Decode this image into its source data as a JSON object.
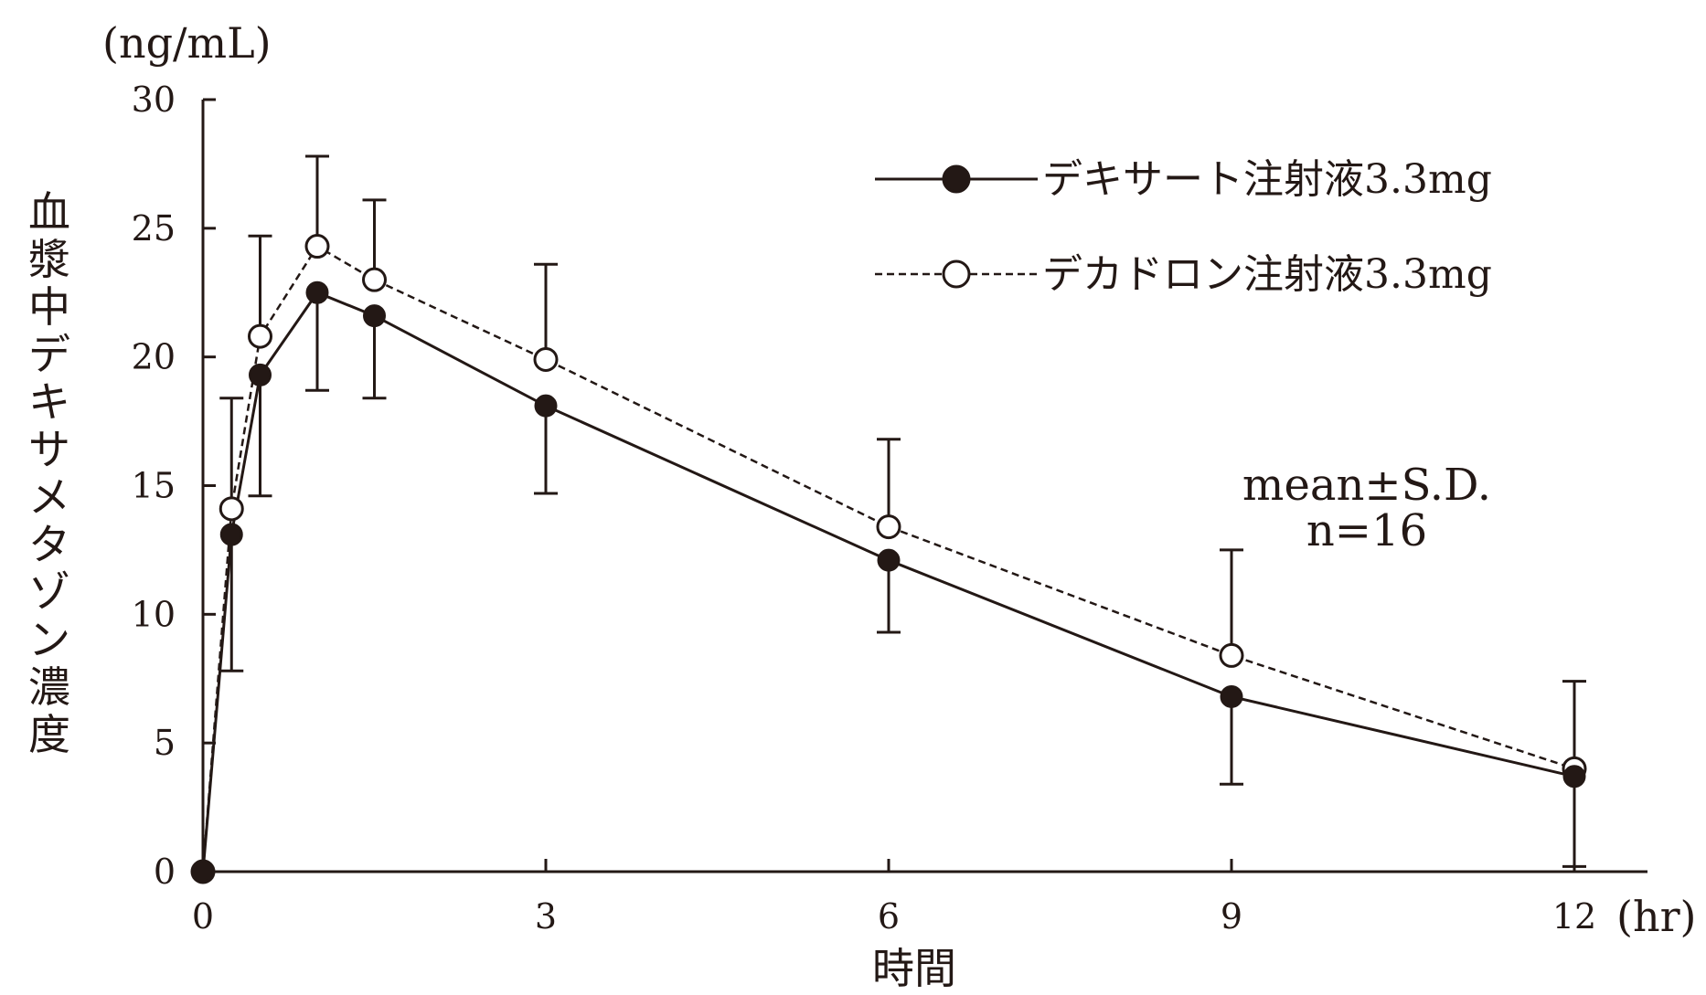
{
  "chart_data": {
    "type": "line",
    "ylabel": "血漿中デキサメタゾン濃度",
    "xlabel": "時間",
    "y_unit": "(ng/mL)",
    "x_unit": "(hr)",
    "ylim": [
      0,
      30
    ],
    "xlim": [
      0,
      12.4
    ],
    "y_ticks": [
      0,
      5,
      10,
      15,
      20,
      25,
      30
    ],
    "x_ticks": [
      0,
      3,
      6,
      9,
      12
    ],
    "grid": false,
    "legend_position": "top-right",
    "annotation": [
      "mean±S.D.",
      "n=16"
    ],
    "x": [
      0,
      0.25,
      0.5,
      1,
      1.5,
      3,
      6,
      9,
      12
    ],
    "series": [
      {
        "name": "デキサート注射液3.3mg",
        "line_style": "solid",
        "marker": "filled-circle",
        "values": [
          0,
          13.1,
          19.3,
          22.5,
          21.6,
          18.1,
          12.1,
          6.8,
          3.7
        ],
        "sd": [
          0,
          5.3,
          4.7,
          3.8,
          3.2,
          3.4,
          2.8,
          3.4,
          3.5
        ]
      },
      {
        "name": "デカドロン注射液3.3mg",
        "line_style": "dashed",
        "marker": "open-circle",
        "values": [
          0,
          14.1,
          20.8,
          24.3,
          23.0,
          19.9,
          13.4,
          8.4,
          4.0
        ],
        "sd": [
          0,
          4.3,
          3.9,
          3.5,
          3.1,
          3.7,
          3.4,
          4.1,
          3.4
        ]
      }
    ],
    "colors": {
      "ink": "#231815",
      "background": "#ffffff"
    }
  }
}
